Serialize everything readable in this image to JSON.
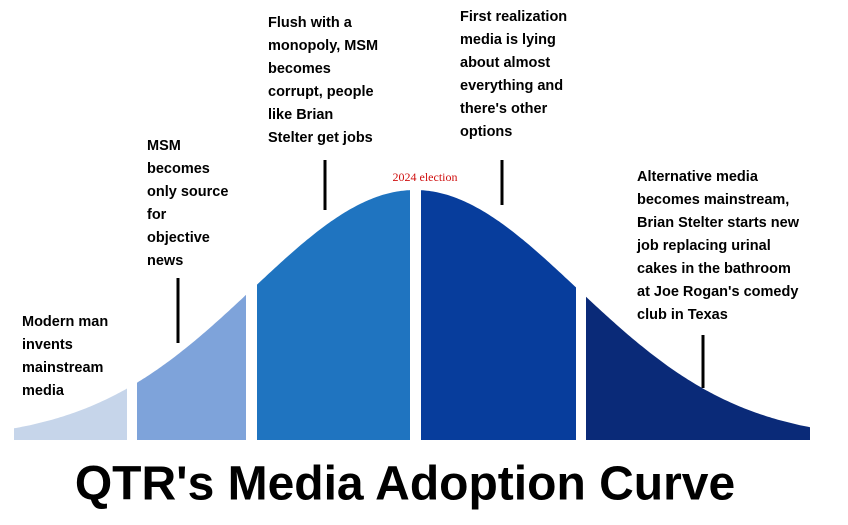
{
  "title": "QTR's Media Adoption Curve",
  "marker": "2024 election",
  "annotations": [
    {
      "lines": [
        "Modern man",
        "invents",
        "mainstream",
        "media"
      ]
    },
    {
      "lines": [
        "MSM",
        "becomes",
        "only source",
        "for",
        "objective",
        "news"
      ]
    },
    {
      "lines": [
        "Flush with a",
        "monopoly, MSM",
        "becomes",
        "corrupt, people",
        "like Brian",
        "Stelter get jobs"
      ]
    },
    {
      "lines": [
        "First realization",
        "media is lying",
        "about almost",
        "everything and",
        "there's other",
        "options"
      ]
    },
    {
      "lines": [
        "Alternative media",
        "becomes mainstream,",
        "Brian Stelter starts new",
        "job replacing urinal",
        "cakes in the bathroom",
        "at Joe Rogan's comedy",
        "club in Texas"
      ]
    }
  ]
}
